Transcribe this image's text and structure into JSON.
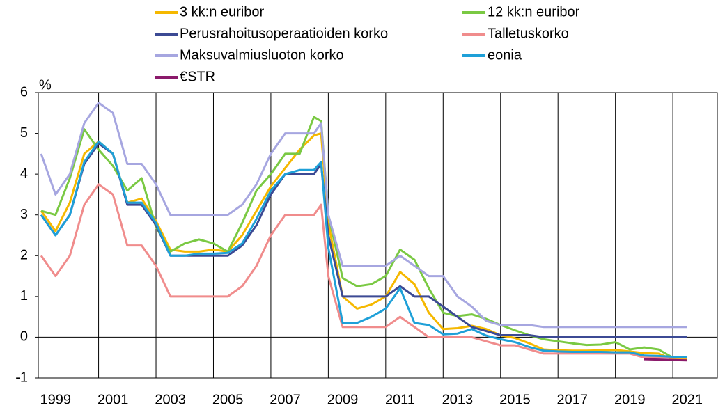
{
  "chart_data": {
    "type": "line",
    "ylabel": "%",
    "x": [
      1999.0,
      1999.5,
      2000.0,
      2000.5,
      2001.0,
      2001.5,
      2002.0,
      2002.5,
      2003.0,
      2003.5,
      2004.0,
      2004.5,
      2005.0,
      2005.5,
      2006.0,
      2006.5,
      2007.0,
      2007.5,
      2008.0,
      2008.5,
      2008.75,
      2009.0,
      2009.5,
      2010.0,
      2010.5,
      2011.0,
      2011.5,
      2012.0,
      2012.5,
      2013.0,
      2013.5,
      2014.0,
      2014.5,
      2015.0,
      2015.5,
      2016.0,
      2016.5,
      2017.0,
      2017.5,
      2018.0,
      2018.5,
      2019.0,
      2019.5,
      2020.0,
      2020.5,
      2021.0,
      2021.5
    ],
    "series": [
      {
        "name": "3 kk:n euribor",
        "color": "#f5b800",
        "values": [
          3.1,
          2.6,
          3.3,
          4.5,
          4.8,
          4.5,
          3.3,
          3.4,
          2.85,
          2.15,
          2.1,
          2.1,
          2.15,
          2.1,
          2.5,
          3.1,
          3.7,
          4.15,
          4.6,
          4.95,
          5.0,
          2.8,
          1.0,
          0.7,
          0.8,
          1.0,
          1.6,
          1.3,
          0.6,
          0.2,
          0.22,
          0.28,
          0.2,
          0.05,
          -0.02,
          -0.15,
          -0.3,
          -0.32,
          -0.33,
          -0.33,
          -0.32,
          -0.31,
          -0.35,
          -0.39,
          -0.4,
          -0.54,
          -0.54
        ]
      },
      {
        "name": "12 kk:n euribor",
        "color": "#7ac943",
        "values": [
          3.1,
          3.0,
          3.9,
          5.1,
          4.6,
          4.2,
          3.6,
          3.9,
          2.7,
          2.1,
          2.3,
          2.4,
          2.3,
          2.1,
          2.8,
          3.6,
          4.0,
          4.5,
          4.5,
          5.4,
          5.3,
          3.0,
          1.45,
          1.25,
          1.3,
          1.5,
          2.15,
          1.9,
          1.2,
          0.6,
          0.52,
          0.56,
          0.45,
          0.3,
          0.17,
          0.05,
          -0.05,
          -0.1,
          -0.15,
          -0.19,
          -0.18,
          -0.12,
          -0.3,
          -0.25,
          -0.3,
          -0.5,
          -0.49
        ]
      },
      {
        "name": "Perusrahoitusoperaatioiden korko",
        "color": "#3c4a94",
        "values": [
          3.0,
          2.5,
          3.0,
          4.25,
          4.75,
          4.5,
          3.25,
          3.25,
          2.75,
          2.0,
          2.0,
          2.0,
          2.0,
          2.0,
          2.25,
          2.75,
          3.5,
          4.0,
          4.0,
          4.0,
          4.25,
          2.5,
          1.0,
          1.0,
          1.0,
          1.0,
          1.25,
          1.0,
          1.0,
          0.75,
          0.5,
          0.25,
          0.15,
          0.05,
          0.05,
          0.05,
          0,
          0,
          0,
          0,
          0,
          0,
          0,
          0,
          0,
          0,
          0
        ]
      },
      {
        "name": "Talletuskorko",
        "color": "#f08c8c",
        "values": [
          2.0,
          1.5,
          2.0,
          3.25,
          3.75,
          3.5,
          2.25,
          2.25,
          1.75,
          1.0,
          1.0,
          1.0,
          1.0,
          1.0,
          1.25,
          1.75,
          2.5,
          3.0,
          3.0,
          3.0,
          3.25,
          1.5,
          0.25,
          0.25,
          0.25,
          0.25,
          0.5,
          0.25,
          0,
          0,
          0,
          0,
          -0.1,
          -0.2,
          -0.2,
          -0.3,
          -0.4,
          -0.4,
          -0.4,
          -0.4,
          -0.4,
          -0.4,
          -0.4,
          -0.5,
          -0.5,
          -0.5,
          -0.5
        ]
      },
      {
        "name": "Maksuvalmiusluoton korko",
        "color": "#a6a6e0",
        "values": [
          4.5,
          3.5,
          4.0,
          5.25,
          5.75,
          5.5,
          4.25,
          4.25,
          3.75,
          3.0,
          3.0,
          3.0,
          3.0,
          3.0,
          3.25,
          3.75,
          4.5,
          5.0,
          5.0,
          5.0,
          5.25,
          3.0,
          1.75,
          1.75,
          1.75,
          1.75,
          2.0,
          1.75,
          1.5,
          1.5,
          1.0,
          0.75,
          0.4,
          0.3,
          0.3,
          0.3,
          0.25,
          0.25,
          0.25,
          0.25,
          0.25,
          0.25,
          0.25,
          0.25,
          0.25,
          0.25,
          0.25
        ]
      },
      {
        "name": "eonia",
        "color": "#1ea0d8",
        "values": [
          3.0,
          2.5,
          3.0,
          4.3,
          4.8,
          4.5,
          3.3,
          3.3,
          2.8,
          2.0,
          2.0,
          2.05,
          2.05,
          2.07,
          2.3,
          2.9,
          3.6,
          4.0,
          4.1,
          4.1,
          4.3,
          2.2,
          0.35,
          0.35,
          0.5,
          0.7,
          1.2,
          0.35,
          0.3,
          0.07,
          0.09,
          0.2,
          0.04,
          -0.05,
          -0.12,
          -0.24,
          -0.33,
          -0.35,
          -0.36,
          -0.36,
          -0.36,
          -0.37,
          -0.37,
          -0.45,
          -0.46,
          -0.48,
          -0.48
        ]
      },
      {
        "name": "€STR",
        "color": "#8b1a6b",
        "values": [
          null,
          null,
          null,
          null,
          null,
          null,
          null,
          null,
          null,
          null,
          null,
          null,
          null,
          null,
          null,
          null,
          null,
          null,
          null,
          null,
          null,
          null,
          null,
          null,
          null,
          null,
          null,
          null,
          null,
          null,
          null,
          null,
          null,
          null,
          null,
          null,
          null,
          null,
          null,
          null,
          null,
          null,
          null,
          -0.54,
          -0.55,
          -0.56,
          -0.57
        ]
      }
    ],
    "xlim": [
      1998.9,
      2022.55
    ],
    "xticks": [
      {
        "value": 1999.5,
        "label": "1999"
      },
      {
        "value": 2001.5,
        "label": "2001"
      },
      {
        "value": 2003.5,
        "label": "2003"
      },
      {
        "value": 2005.5,
        "label": "2005"
      },
      {
        "value": 2007.5,
        "label": "2007"
      },
      {
        "value": 2009.5,
        "label": "2009"
      },
      {
        "value": 2011.5,
        "label": "2011"
      },
      {
        "value": 2013.5,
        "label": "2013"
      },
      {
        "value": 2015.5,
        "label": "2015"
      },
      {
        "value": 2017.5,
        "label": "2017"
      },
      {
        "value": 2019.5,
        "label": "2019"
      },
      {
        "value": 2021.5,
        "label": "2021"
      }
    ],
    "xgrid": [
      2001,
      2003,
      2005,
      2007,
      2009,
      2011,
      2013,
      2015,
      2017,
      2019,
      2021
    ],
    "ylim": [
      -1,
      6
    ],
    "yticks": [
      -1,
      0,
      1,
      2,
      3,
      4,
      5,
      6
    ],
    "grid": true
  }
}
